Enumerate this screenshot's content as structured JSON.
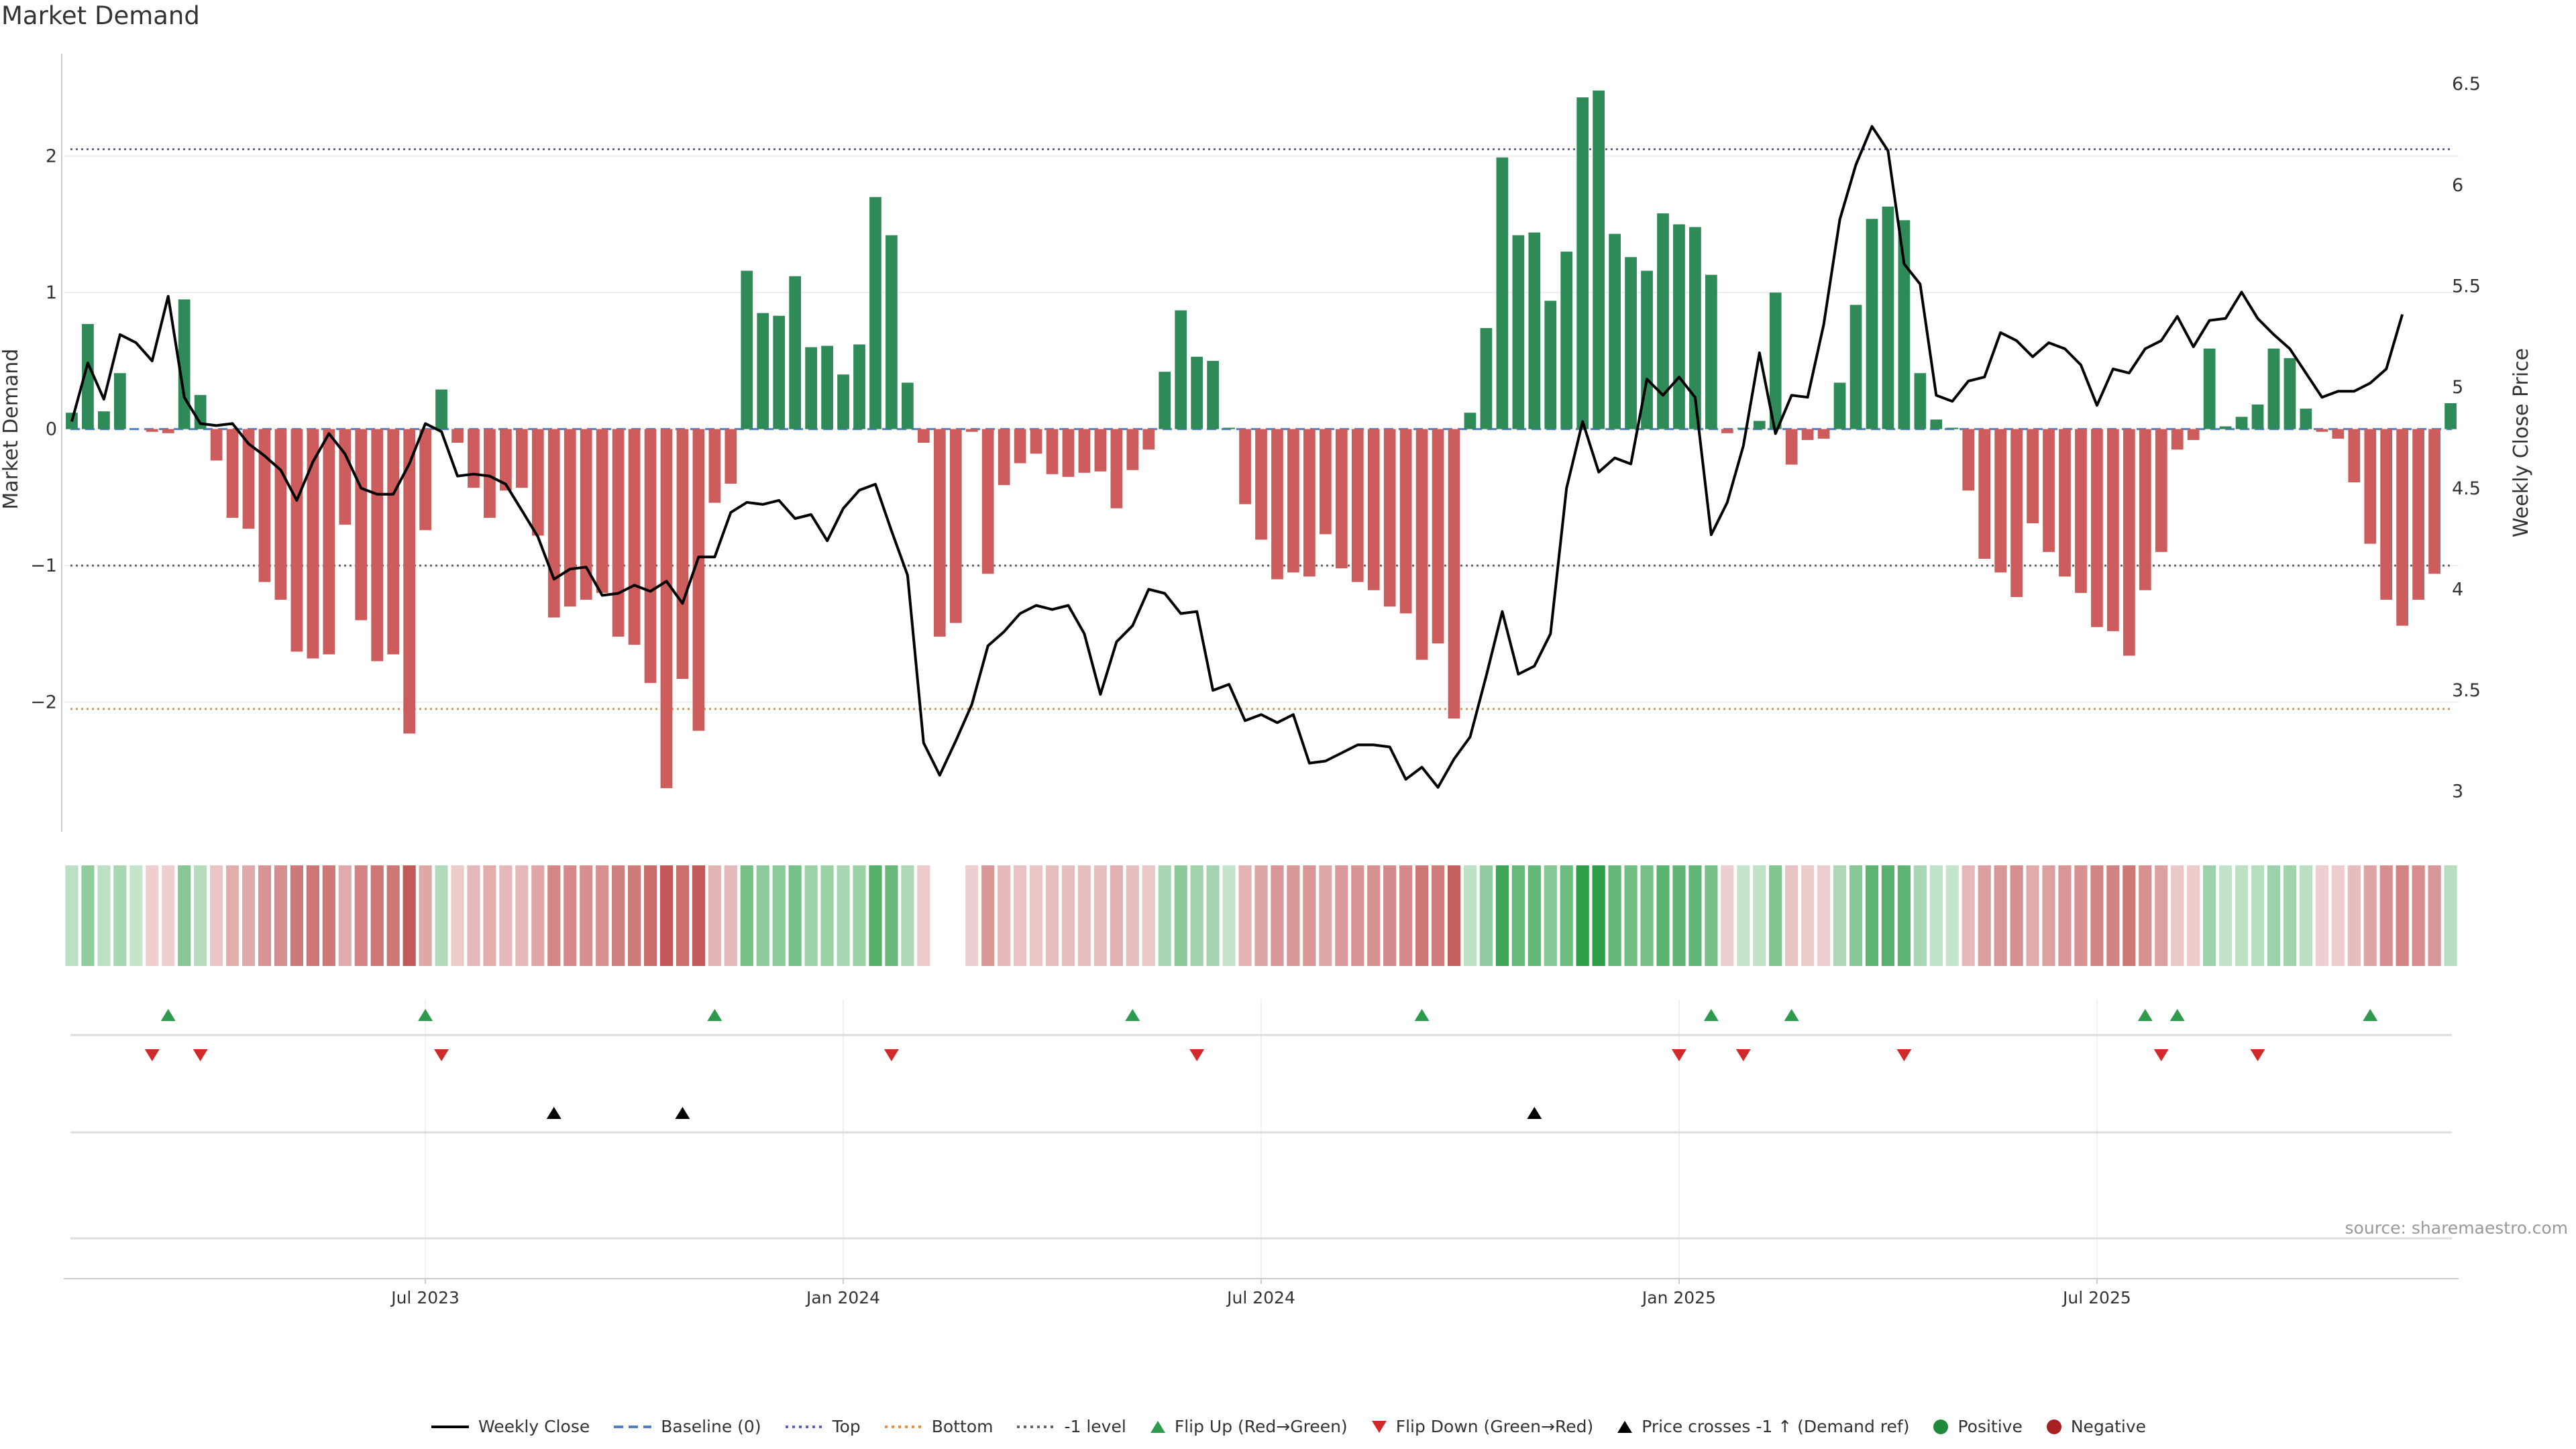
{
  "chart_data": {
    "type": "bar",
    "title": "Market Demand",
    "ylabel": "Market Demand",
    "y2label": "Weekly Close Price",
    "ylim": [
      -2.95,
      2.75
    ],
    "y2lim": [
      2.8,
      6.65
    ],
    "yticks": [
      2,
      1,
      0,
      -1,
      -2
    ],
    "y2ticks": [
      6.5,
      6,
      5.5,
      5,
      4.5,
      4,
      3.5,
      3
    ],
    "xticks": [
      {
        "label": "Jul 2023",
        "week": 22
      },
      {
        "label": "Jan 2024",
        "week": 48
      },
      {
        "label": "Jul 2024",
        "week": 74
      },
      {
        "label": "Jan 2025",
        "week": 100
      },
      {
        "label": "Jul 2025",
        "week": 126
      }
    ],
    "reference_lines": {
      "top": 2.05,
      "bottom": -2.05,
      "minus_one": -1,
      "baseline": 0
    },
    "demand": [
      0.12,
      0.77,
      0.13,
      0.41,
      0,
      -0.02,
      -0.03,
      0.95,
      0.25,
      -0.23,
      -0.65,
      -0.73,
      -1.12,
      -1.25,
      -1.63,
      -1.68,
      -1.65,
      -0.7,
      -1.4,
      -1.7,
      -1.65,
      -2.23,
      -0.74,
      0.29,
      -0.1,
      -0.43,
      -0.65,
      -0.45,
      -0.43,
      -0.78,
      -1.38,
      -1.3,
      -1.25,
      -1.2,
      -1.52,
      -1.58,
      -1.86,
      -2.63,
      -1.83,
      -2.21,
      -0.54,
      -0.4,
      1.16,
      0.85,
      0.83,
      1.12,
      0.6,
      0.61,
      0.4,
      0.62,
      1.7,
      1.42,
      0.34,
      -0.1,
      -1.52,
      -1.42,
      -0.02,
      -1.06,
      -0.41,
      -0.25,
      -0.18,
      -0.33,
      -0.35,
      -0.32,
      -0.31,
      -0.58,
      -0.3,
      -0.15,
      0.42,
      0.87,
      0.53,
      0.5,
      0.01,
      -0.55,
      -0.81,
      -1.1,
      -1.05,
      -1.08,
      -0.77,
      -1.02,
      -1.12,
      -1.18,
      -1.3,
      -1.35,
      -1.69,
      -1.57,
      -2.12,
      0.12,
      0.74,
      1.99,
      1.42,
      1.44,
      0.94,
      1.3,
      2.43,
      2.48,
      1.43,
      1.26,
      1.16,
      1.58,
      1.5,
      1.48,
      1.13,
      -0.03,
      0.01,
      0.06,
      1.0,
      -0.26,
      -0.08,
      -0.07,
      0.34,
      0.91,
      1.54,
      1.63,
      1.53,
      0.41,
      0.07,
      0.01,
      -0.45,
      -0.95,
      -1.05,
      -1.23,
      -0.69,
      -0.9,
      -1.08,
      -1.2,
      -1.45,
      -1.48,
      -1.66,
      -1.18,
      -0.9,
      -0.15,
      -0.08,
      0.59,
      0.02,
      0.09,
      0.18,
      0.59,
      0.52,
      0.15,
      -0.02,
      -0.07,
      -0.39,
      -0.84,
      -1.25,
      -1.44,
      -1.25,
      -1.06,
      0.19
    ],
    "price": [
      4.83,
      5.12,
      4.94,
      5.26,
      5.22,
      5.13,
      5.45,
      4.95,
      4.82,
      4.81,
      4.82,
      4.72,
      4.66,
      4.59,
      4.44,
      4.63,
      4.77,
      4.67,
      4.5,
      4.47,
      4.47,
      4.62,
      4.82,
      4.78,
      4.56,
      4.57,
      4.56,
      4.52,
      4.39,
      4.26,
      4.05,
      4.1,
      4.11,
      3.97,
      3.98,
      4.02,
      3.99,
      4.04,
      3.93,
      4.16,
      4.16,
      4.38,
      4.43,
      4.42,
      4.44,
      4.35,
      4.37,
      4.24,
      4.4,
      4.49,
      4.52,
      4.29,
      4.07,
      3.24,
      3.08,
      3.25,
      3.43,
      3.72,
      3.79,
      3.88,
      3.92,
      3.9,
      3.92,
      3.78,
      3.48,
      3.74,
      3.82,
      4.0,
      3.98,
      3.88,
      3.89,
      3.5,
      3.53,
      3.35,
      3.38,
      3.34,
      3.38,
      3.14,
      3.15,
      3.19,
      3.23,
      3.23,
      3.22,
      3.06,
      3.12,
      3.02,
      3.16,
      3.27,
      3.57,
      3.89,
      3.58,
      3.62,
      3.78,
      4.5,
      4.83,
      4.58,
      4.65,
      4.62,
      5.04,
      4.96,
      5.05,
      4.95,
      4.27,
      4.43,
      4.71,
      5.17,
      4.77,
      4.96,
      4.95,
      5.31,
      5.83,
      6.1,
      6.29,
      6.17,
      5.61,
      5.51,
      4.96,
      4.93,
      5.03,
      5.05,
      5.27,
      5.23,
      5.15,
      5.22,
      5.19,
      5.11,
      4.91,
      5.09,
      5.07,
      5.19,
      5.23,
      5.35,
      5.2,
      5.33,
      5.34,
      5.47,
      5.34,
      5.26,
      5.19,
      5.07,
      4.95,
      4.98,
      4.98,
      5.02,
      5.09,
      5.36
    ],
    "heat_gaps": [
      54,
      55
    ],
    "flip_up": [
      6,
      22,
      40,
      66,
      84,
      102,
      107,
      129,
      131,
      143
    ],
    "flip_down": [
      5,
      8,
      23,
      51,
      70,
      100,
      104,
      114,
      130,
      136
    ],
    "price_cross": [
      30,
      38,
      91
    ],
    "source": "source: sharemaestro.com"
  },
  "legend": [
    {
      "label": "Weekly Close",
      "icon": "weekly-close-line",
      "color": "#000000"
    },
    {
      "label": "Baseline (0)",
      "icon": "baseline-dashed-line",
      "color": "#4f7fc9"
    },
    {
      "label": "Top",
      "icon": "top-dotted-line",
      "color": "#5c5ccc"
    },
    {
      "label": "Bottom",
      "icon": "bottom-dotted-line",
      "color": "#e69138"
    },
    {
      "label": "-1 level",
      "icon": "minus-one-dotted-line",
      "color": "#666666"
    },
    {
      "label": "Flip Up (Red→Green)",
      "icon": "triangle-up-icon",
      "color": "#2e9a4e"
    },
    {
      "label": "Flip Down (Green→Red)",
      "icon": "triangle-down-icon",
      "color": "#d02a2a"
    },
    {
      "label": "Price crosses -1 ↑ (Demand ref)",
      "icon": "triangle-up-black-icon",
      "color": "#000000"
    },
    {
      "label": "Positive",
      "icon": "circle-icon",
      "color": "#1f8a3a"
    },
    {
      "label": "Negative",
      "icon": "circle-icon",
      "color": "#a81f1f"
    }
  ],
  "colors": {
    "positive": "#2e8b57",
    "negative": "#cd5c5c",
    "heat_pos": "#2e9e48",
    "heat_neg": "#c25858",
    "axis": "#333333",
    "grid": "#eeeeee"
  }
}
